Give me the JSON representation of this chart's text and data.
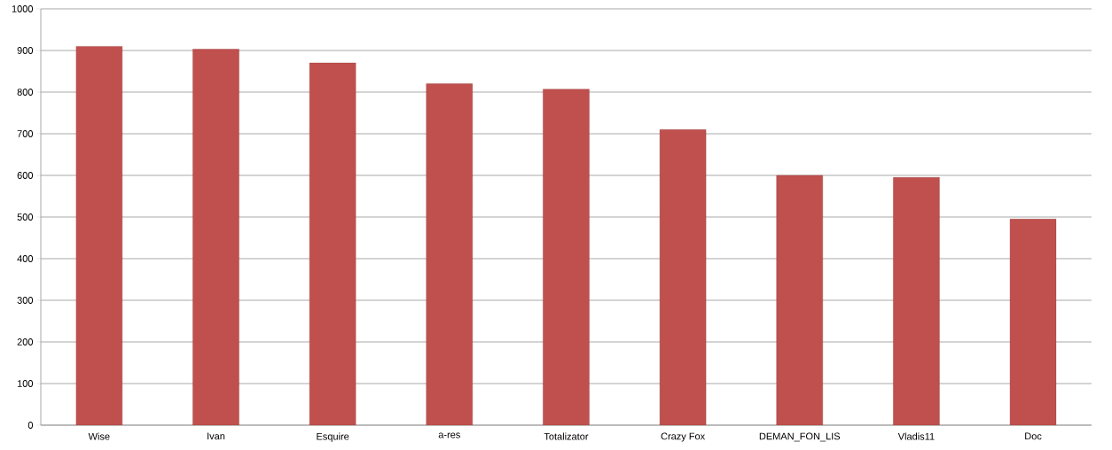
{
  "chart_data": {
    "type": "bar",
    "categories": [
      "Wise",
      "Ivan",
      "Esquire",
      "a-res",
      "Totalizator",
      "Crazy Fox",
      "DEMAN_FON_LIS",
      "Vladis11",
      "Doc"
    ],
    "values": [
      910,
      903,
      870,
      820,
      807,
      710,
      600,
      595,
      495
    ],
    "color": "#c0504d",
    "ylim": [
      0,
      1000
    ],
    "yticks": [
      0,
      100,
      200,
      300,
      400,
      500,
      600,
      700,
      800,
      900,
      1000
    ],
    "grid": "y"
  }
}
